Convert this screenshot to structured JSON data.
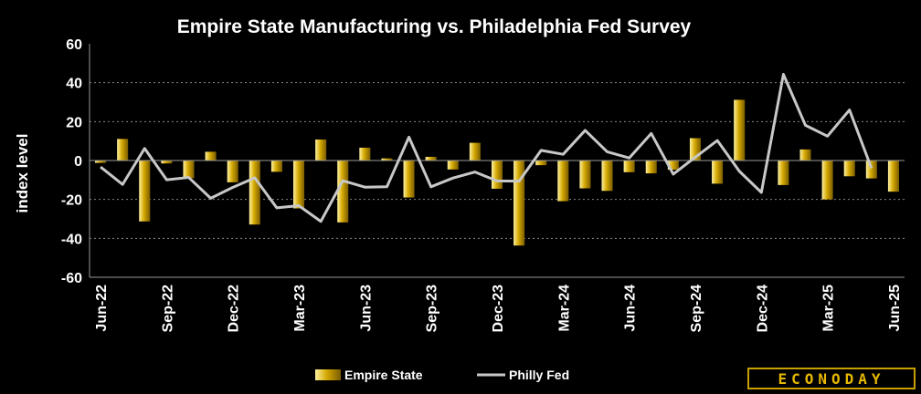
{
  "chart_data": {
    "type": "bar",
    "title": "Empire State Manufacturing vs. Philadelphia Fed Survey",
    "xlabel": "",
    "ylabel": "index level",
    "ylim": [
      -60,
      60
    ],
    "yticks": [
      "60",
      "40",
      "20",
      "0",
      "-20",
      "-40",
      "-60"
    ],
    "grid": true,
    "legend_position": "bottom",
    "categories": [
      "Jun-22",
      "Jul-22",
      "Aug-22",
      "Sep-22",
      "Oct-22",
      "Nov-22",
      "Dec-22",
      "Jan-23",
      "Feb-23",
      "Mar-23",
      "Apr-23",
      "May-23",
      "Jun-23",
      "Jul-23",
      "Aug-23",
      "Sep-23",
      "Oct-23",
      "Nov-23",
      "Dec-23",
      "Jan-24",
      "Feb-24",
      "Mar-24",
      "Apr-24",
      "May-24",
      "Jun-24",
      "Jul-24",
      "Aug-24",
      "Sep-24",
      "Oct-24",
      "Nov-24",
      "Dec-24",
      "Jan-25",
      "Feb-25",
      "Mar-25",
      "Apr-25",
      "May-25",
      "Jun-25"
    ],
    "x_tick_labels": [
      "Jun-22",
      "Sep-22",
      "Dec-22",
      "Mar-23",
      "Jun-23",
      "Sep-23",
      "Dec-23",
      "Mar-24",
      "Jun-24",
      "Sep-24",
      "Dec-24",
      "Mar-25",
      "Jun-25"
    ],
    "series": [
      {
        "name": "Empire State",
        "type": "bar",
        "color": "#d4a800",
        "values": [
          -1.2,
          11.1,
          -31.3,
          -1.5,
          -9.1,
          4.5,
          -11.2,
          -32.9,
          -5.8,
          -24.6,
          10.8,
          -31.8,
          6.6,
          1.1,
          -19.0,
          1.9,
          -4.6,
          9.1,
          -14.5,
          -43.7,
          -2.4,
          -20.9,
          -14.3,
          -15.6,
          -6.0,
          -6.6,
          -4.7,
          11.5,
          -11.9,
          31.2,
          0.2,
          -12.6,
          5.7,
          -20.0,
          -8.1,
          -9.2,
          -16.0
        ]
      },
      {
        "name": "Philly Fed",
        "type": "line",
        "color": "#c8c8c8",
        "values": [
          -3.3,
          -12.3,
          6.2,
          -9.9,
          -8.7,
          -19.4,
          -13.8,
          -8.9,
          -24.3,
          -23.2,
          -31.3,
          -10.4,
          -13.7,
          -13.5,
          12.0,
          -13.5,
          -9.0,
          -5.9,
          -10.5,
          -10.6,
          5.2,
          3.2,
          15.5,
          4.5,
          1.3,
          13.9,
          -7.0,
          1.7,
          10.3,
          -5.5,
          -16.4,
          44.3,
          18.1,
          12.5,
          26.0,
          -4.0,
          null
        ]
      }
    ]
  },
  "brand": {
    "logo_text": "ECONODAY"
  }
}
